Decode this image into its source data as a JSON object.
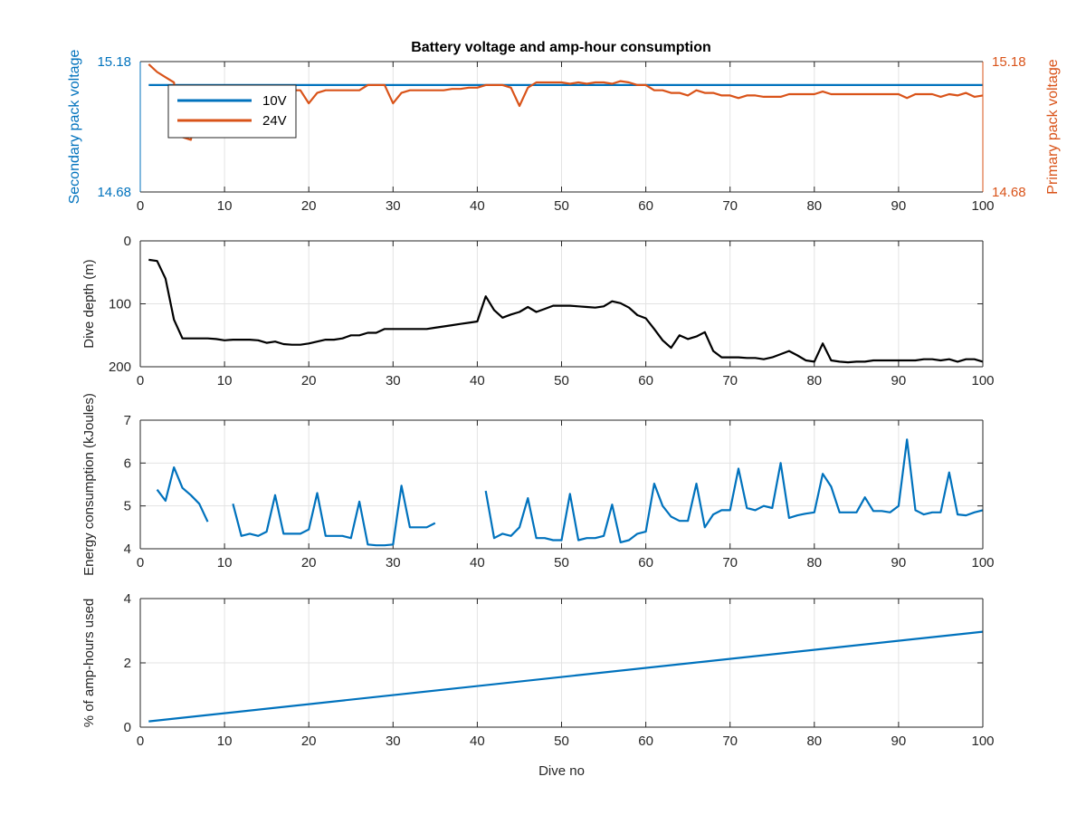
{
  "chart_data": [
    {
      "type": "line",
      "title": "Battery voltage and amp-hour consumption",
      "ylabel": "Secondary pack voltage",
      "ylabel_right": "Primary pack voltage",
      "xlim": [
        0,
        100
      ],
      "ylim": [
        14.68,
        15.18
      ],
      "ylim_right": [
        14.68,
        15.18
      ],
      "xticks": [
        "0",
        "10",
        "20",
        "30",
        "40",
        "50",
        "60",
        "70",
        "80",
        "90",
        "100"
      ],
      "yticks": [
        "14.68",
        "15.18"
      ],
      "yticks_right": [
        "14.68",
        "15.18"
      ],
      "grid": true,
      "legend_placement": "top-left",
      "series": [
        {
          "name": "10V",
          "color": "#0072BD",
          "axis": "left",
          "x": [
            1,
            100
          ],
          "y": [
            15.09,
            15.09
          ]
        },
        {
          "name": "24V",
          "color": "#D95319",
          "axis": "right",
          "x": [
            1,
            2,
            3,
            4,
            5,
            6,
            7,
            8,
            9,
            10,
            11,
            12,
            13,
            14,
            15,
            16,
            17,
            18,
            19,
            20,
            21,
            22,
            23,
            24,
            25,
            26,
            27,
            28,
            29,
            30,
            31,
            32,
            33,
            34,
            35,
            36,
            37,
            38,
            39,
            40,
            41,
            42,
            43,
            44,
            45,
            46,
            47,
            48,
            49,
            50,
            51,
            52,
            53,
            54,
            55,
            56,
            57,
            58,
            59,
            60,
            61,
            62,
            63,
            64,
            65,
            66,
            67,
            68,
            69,
            70,
            71,
            72,
            73,
            74,
            75,
            76,
            77,
            78,
            79,
            80,
            81,
            82,
            83,
            84,
            85,
            86,
            87,
            88,
            89,
            90,
            91,
            92,
            93,
            94,
            95,
            96,
            97,
            98,
            99,
            100
          ],
          "y": [
            15.17,
            15.14,
            15.12,
            15.1,
            14.89,
            14.88,
            15.07,
            15.07,
            15.07,
            15.07,
            15.07,
            15.07,
            15.07,
            15.07,
            15.07,
            15.07,
            15.07,
            15.07,
            15.07,
            15.02,
            15.06,
            15.07,
            15.07,
            15.07,
            15.07,
            15.07,
            15.09,
            15.09,
            15.09,
            15.02,
            15.06,
            15.07,
            15.07,
            15.07,
            15.07,
            15.07,
            15.075,
            15.075,
            15.08,
            15.08,
            15.09,
            15.09,
            15.09,
            15.08,
            15.01,
            15.08,
            15.1,
            15.1,
            15.1,
            15.1,
            15.095,
            15.1,
            15.095,
            15.1,
            15.1,
            15.095,
            15.105,
            15.1,
            15.09,
            15.09,
            15.07,
            15.07,
            15.06,
            15.06,
            15.05,
            15.07,
            15.06,
            15.06,
            15.05,
            15.05,
            15.04,
            15.05,
            15.05,
            15.045,
            15.045,
            15.045,
            15.055,
            15.055,
            15.055,
            15.055,
            15.065,
            15.055,
            15.055,
            15.055,
            15.055,
            15.055,
            15.055,
            15.055,
            15.055,
            15.055,
            15.04,
            15.055,
            15.055,
            15.055,
            15.045,
            15.055,
            15.05,
            15.06,
            15.045,
            15.05
          ]
        }
      ]
    },
    {
      "type": "line",
      "ylabel": "Dive depth (m)",
      "xlim": [
        0,
        100
      ],
      "ylim": [
        0,
        200
      ],
      "y_reversed": true,
      "xticks": [
        "0",
        "10",
        "20",
        "30",
        "40",
        "50",
        "60",
        "70",
        "80",
        "90",
        "100"
      ],
      "yticks": [
        "0",
        "100",
        "200"
      ],
      "grid": true,
      "series": [
        {
          "color": "#000000",
          "x": [
            1,
            2,
            3,
            4,
            5,
            6,
            7,
            8,
            9,
            10,
            11,
            12,
            13,
            14,
            15,
            16,
            17,
            18,
            19,
            20,
            21,
            22,
            23,
            24,
            25,
            26,
            27,
            28,
            29,
            30,
            31,
            32,
            33,
            34,
            35,
            36,
            37,
            38,
            39,
            40,
            41,
            42,
            43,
            44,
            45,
            46,
            47,
            48,
            49,
            50,
            51,
            52,
            53,
            54,
            55,
            56,
            57,
            58,
            59,
            60,
            61,
            62,
            63,
            64,
            65,
            66,
            67,
            68,
            69,
            70,
            71,
            72,
            73,
            74,
            75,
            76,
            77,
            78,
            79,
            80,
            81,
            82,
            83,
            84,
            85,
            86,
            87,
            88,
            89,
            90,
            91,
            92,
            93,
            94,
            95,
            96,
            97,
            98,
            99,
            100
          ],
          "y": [
            30,
            32,
            60,
            125,
            155,
            155,
            155,
            155,
            156,
            158,
            157,
            157,
            157,
            158,
            162,
            160,
            164,
            165,
            165,
            163,
            160,
            157,
            157,
            155,
            150,
            150,
            146,
            146,
            140,
            140,
            140,
            140,
            140,
            140,
            138,
            136,
            134,
            132,
            130,
            128,
            88,
            110,
            122,
            117,
            113,
            105,
            113,
            108,
            103,
            103,
            103,
            104,
            105,
            106,
            104,
            96,
            99,
            106,
            118,
            123,
            140,
            158,
            170,
            150,
            156,
            152,
            145,
            175,
            185,
            185,
            185,
            186,
            186,
            188,
            185,
            180,
            175,
            182,
            190,
            192,
            163,
            190,
            192,
            193,
            192,
            192,
            190,
            190,
            190,
            190,
            190,
            190,
            188,
            188,
            190,
            188,
            192,
            188,
            188,
            192
          ]
        }
      ]
    },
    {
      "type": "line",
      "ylabel": "Energy consumption (kJoules)",
      "xlim": [
        0,
        100
      ],
      "ylim": [
        4,
        7
      ],
      "xticks": [
        "0",
        "10",
        "20",
        "30",
        "40",
        "50",
        "60",
        "70",
        "80",
        "90",
        "100"
      ],
      "yticks": [
        "4",
        "5",
        "6",
        "7"
      ],
      "grid": true,
      "series": [
        {
          "color": "#0072BD",
          "x": [
            2,
            3,
            4,
            5,
            6,
            7,
            8,
            null,
            11,
            12,
            13,
            14,
            15,
            16,
            17,
            18,
            19,
            20,
            21,
            22,
            23,
            24,
            25,
            26,
            27,
            28,
            29,
            30,
            31,
            32,
            33,
            34,
            35,
            null,
            41,
            42,
            43,
            44,
            45,
            46,
            47,
            48,
            49,
            50,
            51,
            52,
            53,
            54,
            55,
            56,
            57,
            58,
            59,
            60,
            61,
            62,
            63,
            64,
            65,
            66,
            67,
            68,
            69,
            70,
            71,
            72,
            73,
            74,
            75,
            76,
            77,
            78,
            79,
            80,
            81,
            82,
            83,
            84,
            85,
            86,
            87,
            88,
            89,
            90,
            91,
            92,
            93,
            94,
            95,
            96,
            97,
            98,
            99,
            100
          ],
          "y": [
            5.38,
            5.12,
            5.9,
            5.42,
            5.25,
            5.05,
            4.63,
            null,
            5.05,
            4.3,
            4.35,
            4.3,
            4.4,
            5.25,
            4.35,
            4.35,
            4.35,
            4.45,
            5.3,
            4.3,
            4.3,
            4.3,
            4.25,
            5.1,
            4.1,
            4.08,
            4.08,
            4.1,
            5.47,
            4.5,
            4.5,
            4.5,
            4.6,
            null,
            5.35,
            4.25,
            4.35,
            4.3,
            4.5,
            5.18,
            4.25,
            4.25,
            4.2,
            4.2,
            5.28,
            4.2,
            4.25,
            4.25,
            4.3,
            5.03,
            4.15,
            4.2,
            4.35,
            4.4,
            5.52,
            5.0,
            4.75,
            4.65,
            4.65,
            5.52,
            4.5,
            4.8,
            4.9,
            4.9,
            5.87,
            4.95,
            4.9,
            5.0,
            4.95,
            6.0,
            4.72,
            4.78,
            4.82,
            4.85,
            5.75,
            5.45,
            4.85,
            4.85,
            4.85,
            5.2,
            4.88,
            4.88,
            4.85,
            5.0,
            6.55,
            4.9,
            4.8,
            4.85,
            4.85,
            5.78,
            4.8,
            4.78,
            4.85,
            4.9
          ]
        }
      ]
    },
    {
      "type": "line",
      "xlabel": "Dive no",
      "ylabel": "% of amp-hours used",
      "xlim": [
        0,
        100
      ],
      "ylim": [
        0,
        4
      ],
      "xticks": [
        "0",
        "10",
        "20",
        "30",
        "40",
        "50",
        "60",
        "70",
        "80",
        "90",
        "100"
      ],
      "yticks": [
        "0",
        "2",
        "4"
      ],
      "grid": true,
      "series": [
        {
          "color": "#0072BD",
          "x": [
            1,
            100
          ],
          "y": [
            0.18,
            2.97
          ]
        }
      ]
    }
  ]
}
